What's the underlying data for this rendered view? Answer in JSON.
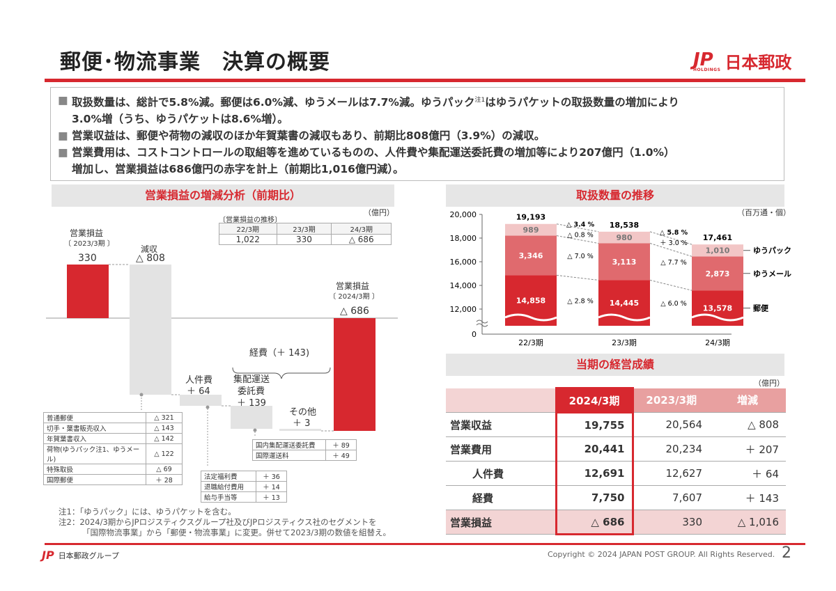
{
  "header": {
    "title": "郵便･物流事業　決算の概要",
    "logo_mark": "JP",
    "logo_sub": "HOLDINGS",
    "logo_name": "日本郵政"
  },
  "summary": {
    "bullet": "■",
    "line1a": "取扱数量は、総計で5.8%減。郵便は6.0%減、ゆうメールは7.7%減。ゆうパック",
    "line1note": "注1",
    "line1b": "はゆうパケットの取扱数量の増加により",
    "line1c": "3.0%増（うち、ゆうパケットは8.6%増）。",
    "line2": "営業収益は、郵便や荷物の減収のほか年賀葉書の減収もあり、前期比808億円（3.9%）の減収。",
    "line3a": "営業費用は、コストコントロールの取組等を進めているものの、人件費や集配運送委託費の増加等により207億円（1.0%）",
    "line3b": "増加し、営業損益は686億円の赤字を計上（前期比1,016億円減）。"
  },
  "waterfall": {
    "section_title": "営業損益の増減分析（前期比）",
    "unit": "（億円）",
    "history_caption": "〔営業損益の推移〕",
    "history": {
      "headers": [
        "22/3期",
        "23/3期",
        "24/3期"
      ],
      "values": [
        "1,022",
        "330",
        "△ 686"
      ]
    },
    "start_label": "営業損益",
    "start_period": "2023/3期",
    "start_value": "330",
    "decrease_label": "減収",
    "decrease_value": "△ 808",
    "personnel_label": "人件費",
    "personnel_value": "＋ 64",
    "expense_group_label": "経費（＋ 143)",
    "transport_label1": "集配運送",
    "transport_label2": "委託費",
    "transport_value": "＋ 139",
    "other_label": "その他",
    "other_value": "＋ 3",
    "end_label": "営業損益",
    "end_period": "2024/3期",
    "end_value": "△ 686",
    "revenue_breakdown": [
      {
        "label": "普通郵便",
        "value": "△ 321"
      },
      {
        "label": "切手・葉書販売収入",
        "value": "△ 143"
      },
      {
        "label": "年賀葉書収入",
        "value": "△ 142"
      },
      {
        "label": "荷物(ゆうパック注1、ゆうメール)",
        "value": "△ 122"
      },
      {
        "label": "特殊取扱",
        "value": "△ 69"
      },
      {
        "label": "国際郵便",
        "value": "＋ 28"
      }
    ],
    "personnel_breakdown": [
      {
        "label": "法定福利費",
        "value": "＋ 36"
      },
      {
        "label": "退職給付費用",
        "value": "＋ 14"
      },
      {
        "label": "給与手当等",
        "value": "＋ 13"
      }
    ],
    "transport_breakdown": [
      {
        "label": "国内集配運送委託費",
        "value": "＋ 89"
      },
      {
        "label": "国際運送料",
        "value": "＋ 49"
      }
    ]
  },
  "chart_data": {
    "type": "bar",
    "title": "取扱数量の推移",
    "unit": "（百万通・個）",
    "categories": [
      "22/3期",
      "23/3期",
      "24/3期"
    ],
    "totals": [
      19193,
      18538,
      17461
    ],
    "total_labels": [
      "19,193",
      "18,538",
      "17,461"
    ],
    "ylim": [
      12000,
      20000
    ],
    "y_ticks": [
      "20,000",
      "18,000",
      "16,000",
      "14,000",
      "12,000",
      "0"
    ],
    "stacked": true,
    "axis_break": true,
    "series": [
      {
        "name": "郵便",
        "values": [
          14858,
          14445,
          13578
        ],
        "labels": [
          "14,858",
          "14,445",
          "13,578"
        ],
        "color": "#d7282f"
      },
      {
        "name": "ゆうメール",
        "values": [
          3346,
          3113,
          2873
        ],
        "labels": [
          "3,346",
          "3,113",
          "2,873"
        ],
        "color": "#e06a6e"
      },
      {
        "name": "ゆうパック",
        "name_note": "注1",
        "values": [
          989,
          980,
          1010
        ],
        "labels": [
          "989",
          "980",
          "1,010"
        ],
        "color": "#f2c6c6"
      }
    ],
    "change_labels": [
      {
        "total": "△ 3.4 %",
        "yupack": "△ 0.8 %",
        "yumail": "△ 7.0 %",
        "yubin": "△ 2.8 %"
      },
      {
        "total": "△ 5.8 %",
        "yupack": "＋ 3.0 %",
        "yumail": "△ 7.7 %",
        "yubin": "△ 6.0 %"
      }
    ]
  },
  "performance": {
    "section_title": "当期の経営成績",
    "unit": "（億円）",
    "headers": [
      "2024/3期",
      "2023/3期",
      "増減"
    ],
    "rows": [
      {
        "label": "営業収益",
        "cur": "19,755",
        "prev": "20,564",
        "diff": "△ 808"
      },
      {
        "label": "営業費用",
        "cur": "20,441",
        "prev": "20,234",
        "diff": "＋ 207"
      },
      {
        "label": "人件費",
        "cur": "12,691",
        "prev": "12,627",
        "diff": "＋ 64"
      },
      {
        "label": "経費",
        "cur": "7,750",
        "prev": "7,607",
        "diff": "＋ 143"
      },
      {
        "label": "営業損益",
        "cur": "△ 686",
        "prev": "330",
        "diff": "△ 1,016"
      }
    ]
  },
  "footnotes": {
    "note1": "注1：「ゆうパック」には、ゆうパケットを含む。",
    "note2a": "注2：2024/3期からJPロジスティクスグループ社及びJPロジスティクス社のセグメントを",
    "note2b": "「国際物流事業」から「郵便・物流事業」に変更。併せて2023/3期の数値を組替え。"
  },
  "footer": {
    "group_mark": "JP",
    "group_name": "日本郵政グループ",
    "copyright": "Copyright © 2024 JAPAN POST GROUP. All Rights Reserved.",
    "page": "2"
  },
  "colors": {
    "brand_red": "#d7282f",
    "mid_red": "#e06a6e",
    "light_red": "#f2c6c6",
    "gray_bar": "#e3e3e3",
    "table_header": "#e8a0a0"
  }
}
